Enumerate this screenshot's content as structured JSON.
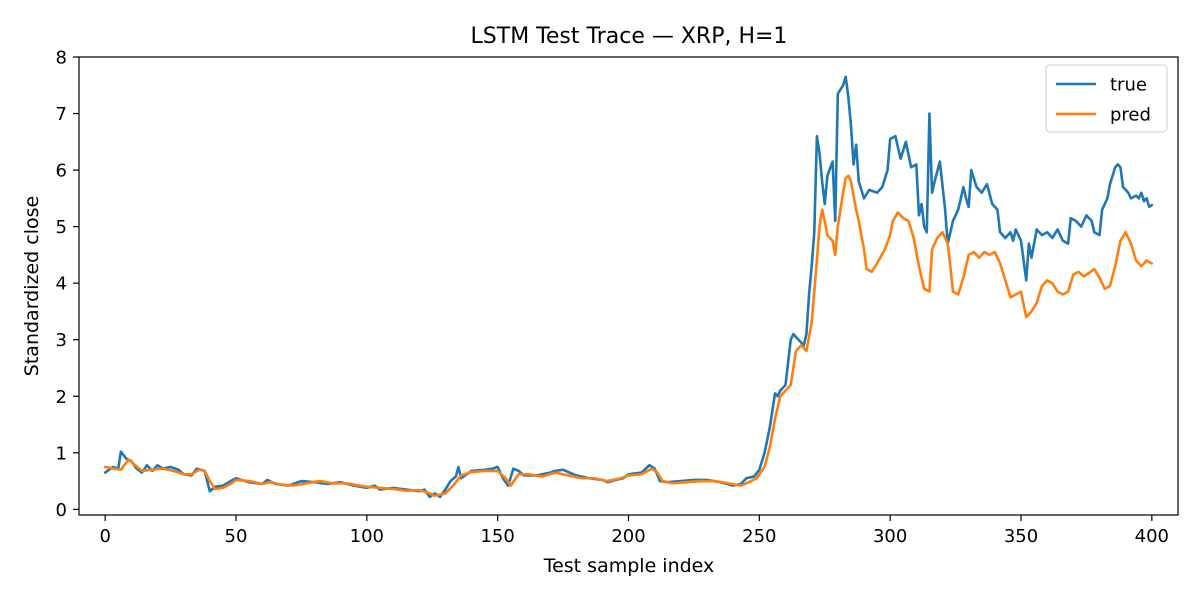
{
  "chart_data": {
    "type": "line",
    "title": "LSTM Test Trace — XRP, H=1",
    "xlabel": "Test sample index",
    "ylabel": "Standardized close",
    "xlim": [
      -10,
      410
    ],
    "ylim": [
      -0.1,
      8.0
    ],
    "xticks": [
      0,
      50,
      100,
      150,
      200,
      250,
      300,
      350,
      400
    ],
    "yticks": [
      0,
      1,
      2,
      3,
      4,
      5,
      6,
      7,
      8
    ],
    "grid": false,
    "legend_position": "top-right",
    "series": [
      {
        "name": "true",
        "color": "#1f77b4",
        "points": [
          [
            0,
            0.65
          ],
          [
            3,
            0.75
          ],
          [
            5,
            0.72
          ],
          [
            6,
            1.02
          ],
          [
            8,
            0.9
          ],
          [
            10,
            0.85
          ],
          [
            12,
            0.72
          ],
          [
            14,
            0.65
          ],
          [
            16,
            0.78
          ],
          [
            18,
            0.68
          ],
          [
            20,
            0.78
          ],
          [
            22,
            0.72
          ],
          [
            25,
            0.75
          ],
          [
            28,
            0.7
          ],
          [
            30,
            0.62
          ],
          [
            33,
            0.6
          ],
          [
            35,
            0.72
          ],
          [
            38,
            0.68
          ],
          [
            40,
            0.32
          ],
          [
            42,
            0.4
          ],
          [
            45,
            0.42
          ],
          [
            48,
            0.5
          ],
          [
            50,
            0.55
          ],
          [
            55,
            0.48
          ],
          [
            60,
            0.45
          ],
          [
            62,
            0.52
          ],
          [
            65,
            0.45
          ],
          [
            70,
            0.42
          ],
          [
            75,
            0.5
          ],
          [
            80,
            0.48
          ],
          [
            85,
            0.45
          ],
          [
            90,
            0.48
          ],
          [
            95,
            0.42
          ],
          [
            100,
            0.38
          ],
          [
            103,
            0.42
          ],
          [
            105,
            0.35
          ],
          [
            110,
            0.38
          ],
          [
            115,
            0.35
          ],
          [
            120,
            0.32
          ],
          [
            122,
            0.35
          ],
          [
            124,
            0.22
          ],
          [
            126,
            0.28
          ],
          [
            128,
            0.22
          ],
          [
            130,
            0.35
          ],
          [
            132,
            0.5
          ],
          [
            134,
            0.58
          ],
          [
            135,
            0.75
          ],
          [
            136,
            0.55
          ],
          [
            140,
            0.68
          ],
          [
            145,
            0.7
          ],
          [
            148,
            0.72
          ],
          [
            150,
            0.75
          ],
          [
            152,
            0.55
          ],
          [
            154,
            0.42
          ],
          [
            156,
            0.72
          ],
          [
            158,
            0.68
          ],
          [
            160,
            0.6
          ],
          [
            165,
            0.6
          ],
          [
            170,
            0.65
          ],
          [
            172,
            0.68
          ],
          [
            175,
            0.7
          ],
          [
            180,
            0.6
          ],
          [
            185,
            0.55
          ],
          [
            190,
            0.52
          ],
          [
            192,
            0.48
          ],
          [
            195,
            0.52
          ],
          [
            198,
            0.55
          ],
          [
            200,
            0.62
          ],
          [
            205,
            0.65
          ],
          [
            208,
            0.78
          ],
          [
            210,
            0.72
          ],
          [
            212,
            0.5
          ],
          [
            215,
            0.48
          ],
          [
            220,
            0.5
          ],
          [
            225,
            0.52
          ],
          [
            230,
            0.52
          ],
          [
            235,
            0.48
          ],
          [
            240,
            0.42
          ],
          [
            243,
            0.45
          ],
          [
            245,
            0.55
          ],
          [
            248,
            0.58
          ],
          [
            250,
            0.7
          ],
          [
            252,
            1.0
          ],
          [
            254,
            1.45
          ],
          [
            256,
            2.05
          ],
          [
            257,
            2.0
          ],
          [
            258,
            2.1
          ],
          [
            260,
            2.2
          ],
          [
            262,
            3.0
          ],
          [
            263,
            3.1
          ],
          [
            265,
            3.0
          ],
          [
            267,
            2.9
          ],
          [
            268,
            3.1
          ],
          [
            269,
            3.8
          ],
          [
            270,
            4.3
          ],
          [
            271,
            4.9
          ],
          [
            272,
            6.6
          ],
          [
            273,
            6.3
          ],
          [
            274,
            5.8
          ],
          [
            275,
            5.4
          ],
          [
            276,
            5.9
          ],
          [
            278,
            6.15
          ],
          [
            279,
            5.1
          ],
          [
            280,
            7.35
          ],
          [
            282,
            7.5
          ],
          [
            283,
            7.65
          ],
          [
            284,
            7.3
          ],
          [
            285,
            6.8
          ],
          [
            286,
            6.1
          ],
          [
            287,
            6.45
          ],
          [
            288,
            5.8
          ],
          [
            290,
            5.5
          ],
          [
            292,
            5.65
          ],
          [
            295,
            5.6
          ],
          [
            297,
            5.7
          ],
          [
            299,
            6.0
          ],
          [
            300,
            6.55
          ],
          [
            302,
            6.6
          ],
          [
            304,
            6.2
          ],
          [
            306,
            6.5
          ],
          [
            308,
            6.05
          ],
          [
            310,
            6.1
          ],
          [
            311,
            5.2
          ],
          [
            312,
            5.4
          ],
          [
            313,
            5.0
          ],
          [
            314,
            4.9
          ],
          [
            315,
            7.0
          ],
          [
            316,
            5.6
          ],
          [
            317,
            5.8
          ],
          [
            319,
            6.15
          ],
          [
            321,
            5.3
          ],
          [
            322,
            4.7
          ],
          [
            324,
            5.1
          ],
          [
            326,
            5.3
          ],
          [
            328,
            5.7
          ],
          [
            329,
            5.5
          ],
          [
            330,
            5.35
          ],
          [
            331,
            6.0
          ],
          [
            333,
            5.7
          ],
          [
            335,
            5.6
          ],
          [
            337,
            5.75
          ],
          [
            339,
            5.4
          ],
          [
            341,
            5.3
          ],
          [
            342,
            4.9
          ],
          [
            344,
            4.8
          ],
          [
            346,
            4.9
          ],
          [
            347,
            4.75
          ],
          [
            348,
            4.95
          ],
          [
            350,
            4.75
          ],
          [
            351,
            4.4
          ],
          [
            352,
            4.05
          ],
          [
            353,
            4.7
          ],
          [
            354,
            4.45
          ],
          [
            356,
            4.95
          ],
          [
            358,
            4.85
          ],
          [
            360,
            4.9
          ],
          [
            362,
            4.8
          ],
          [
            364,
            4.95
          ],
          [
            366,
            4.75
          ],
          [
            368,
            4.7
          ],
          [
            369,
            5.15
          ],
          [
            371,
            5.1
          ],
          [
            373,
            5.0
          ],
          [
            375,
            5.2
          ],
          [
            377,
            5.1
          ],
          [
            378,
            4.9
          ],
          [
            380,
            4.85
          ],
          [
            381,
            5.3
          ],
          [
            383,
            5.5
          ],
          [
            384,
            5.75
          ],
          [
            386,
            6.05
          ],
          [
            387,
            6.1
          ],
          [
            388,
            6.05
          ],
          [
            389,
            5.7
          ],
          [
            391,
            5.6
          ],
          [
            392,
            5.5
          ],
          [
            394,
            5.55
          ],
          [
            395,
            5.5
          ],
          [
            396,
            5.6
          ],
          [
            397,
            5.45
          ],
          [
            398,
            5.5
          ],
          [
            399,
            5.35
          ],
          [
            400,
            5.38
          ]
        ]
      },
      {
        "name": "pred",
        "color": "#ff7f0e",
        "points": [
          [
            0,
            0.75
          ],
          [
            3,
            0.72
          ],
          [
            6,
            0.7
          ],
          [
            9,
            0.88
          ],
          [
            11,
            0.8
          ],
          [
            14,
            0.68
          ],
          [
            18,
            0.7
          ],
          [
            22,
            0.72
          ],
          [
            26,
            0.68
          ],
          [
            30,
            0.62
          ],
          [
            33,
            0.62
          ],
          [
            36,
            0.7
          ],
          [
            38,
            0.68
          ],
          [
            40,
            0.5
          ],
          [
            42,
            0.36
          ],
          [
            45,
            0.38
          ],
          [
            48,
            0.45
          ],
          [
            50,
            0.52
          ],
          [
            55,
            0.5
          ],
          [
            60,
            0.45
          ],
          [
            63,
            0.48
          ],
          [
            67,
            0.44
          ],
          [
            72,
            0.42
          ],
          [
            77,
            0.46
          ],
          [
            82,
            0.5
          ],
          [
            87,
            0.46
          ],
          [
            92,
            0.46
          ],
          [
            96,
            0.43
          ],
          [
            100,
            0.4
          ],
          [
            105,
            0.38
          ],
          [
            110,
            0.36
          ],
          [
            115,
            0.33
          ],
          [
            120,
            0.34
          ],
          [
            123,
            0.3
          ],
          [
            126,
            0.24
          ],
          [
            130,
            0.28
          ],
          [
            133,
            0.42
          ],
          [
            136,
            0.6
          ],
          [
            140,
            0.66
          ],
          [
            145,
            0.68
          ],
          [
            150,
            0.68
          ],
          [
            153,
            0.55
          ],
          [
            155,
            0.42
          ],
          [
            158,
            0.62
          ],
          [
            162,
            0.62
          ],
          [
            167,
            0.58
          ],
          [
            172,
            0.65
          ],
          [
            177,
            0.6
          ],
          [
            182,
            0.55
          ],
          [
            187,
            0.55
          ],
          [
            192,
            0.5
          ],
          [
            197,
            0.55
          ],
          [
            200,
            0.6
          ],
          [
            205,
            0.62
          ],
          [
            209,
            0.72
          ],
          [
            211,
            0.65
          ],
          [
            213,
            0.5
          ],
          [
            217,
            0.46
          ],
          [
            222,
            0.48
          ],
          [
            228,
            0.5
          ],
          [
            233,
            0.5
          ],
          [
            238,
            0.46
          ],
          [
            243,
            0.42
          ],
          [
            246,
            0.48
          ],
          [
            249,
            0.55
          ],
          [
            252,
            0.75
          ],
          [
            254,
            1.1
          ],
          [
            256,
            1.6
          ],
          [
            258,
            2.0
          ],
          [
            260,
            2.1
          ],
          [
            262,
            2.2
          ],
          [
            264,
            2.8
          ],
          [
            266,
            2.9
          ],
          [
            268,
            2.8
          ],
          [
            270,
            3.3
          ],
          [
            272,
            4.4
          ],
          [
            273,
            5.0
          ],
          [
            274,
            5.3
          ],
          [
            275,
            5.1
          ],
          [
            276,
            4.85
          ],
          [
            278,
            4.75
          ],
          [
            279,
            4.5
          ],
          [
            280,
            5.0
          ],
          [
            282,
            5.6
          ],
          [
            283,
            5.85
          ],
          [
            284,
            5.9
          ],
          [
            285,
            5.8
          ],
          [
            287,
            5.3
          ],
          [
            288,
            5.1
          ],
          [
            290,
            4.6
          ],
          [
            291,
            4.25
          ],
          [
            293,
            4.2
          ],
          [
            295,
            4.35
          ],
          [
            298,
            4.6
          ],
          [
            300,
            4.85
          ],
          [
            301,
            5.1
          ],
          [
            303,
            5.25
          ],
          [
            305,
            5.15
          ],
          [
            307,
            5.1
          ],
          [
            309,
            4.8
          ],
          [
            311,
            4.3
          ],
          [
            313,
            3.9
          ],
          [
            315,
            3.85
          ],
          [
            316,
            4.6
          ],
          [
            318,
            4.8
          ],
          [
            320,
            4.9
          ],
          [
            322,
            4.7
          ],
          [
            323,
            4.3
          ],
          [
            324,
            3.85
          ],
          [
            326,
            3.8
          ],
          [
            328,
            4.1
          ],
          [
            330,
            4.5
          ],
          [
            332,
            4.55
          ],
          [
            334,
            4.45
          ],
          [
            336,
            4.55
          ],
          [
            338,
            4.5
          ],
          [
            340,
            4.55
          ],
          [
            342,
            4.35
          ],
          [
            344,
            4.05
          ],
          [
            346,
            3.75
          ],
          [
            348,
            3.8
          ],
          [
            350,
            3.85
          ],
          [
            352,
            3.4
          ],
          [
            354,
            3.5
          ],
          [
            356,
            3.65
          ],
          [
            358,
            3.95
          ],
          [
            360,
            4.05
          ],
          [
            362,
            4.0
          ],
          [
            364,
            3.85
          ],
          [
            366,
            3.8
          ],
          [
            368,
            3.85
          ],
          [
            370,
            4.15
          ],
          [
            372,
            4.2
          ],
          [
            374,
            4.12
          ],
          [
            376,
            4.18
          ],
          [
            378,
            4.25
          ],
          [
            380,
            4.1
          ],
          [
            382,
            3.9
          ],
          [
            384,
            3.95
          ],
          [
            386,
            4.3
          ],
          [
            388,
            4.75
          ],
          [
            390,
            4.9
          ],
          [
            392,
            4.7
          ],
          [
            394,
            4.4
          ],
          [
            396,
            4.3
          ],
          [
            398,
            4.4
          ],
          [
            400,
            4.35
          ]
        ]
      }
    ]
  }
}
